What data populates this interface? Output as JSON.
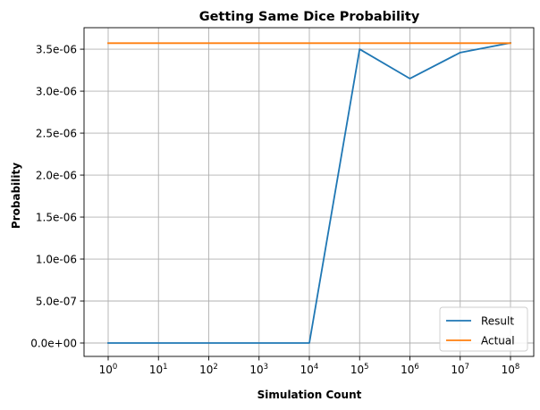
{
  "chart_data": {
    "type": "line",
    "title": "Getting Same Dice Probability",
    "xlabel": "Simulation Count",
    "ylabel": "Probability",
    "x_scale": "log",
    "x": [
      1,
      10,
      100,
      1000,
      10000,
      100000,
      1000000,
      10000000,
      100000000
    ],
    "xlim": [
      1,
      100000000
    ],
    "ylim": [
      0,
      3.57e-06
    ],
    "x_ticks": [
      {
        "base": "10",
        "exp": "0"
      },
      {
        "base": "10",
        "exp": "1"
      },
      {
        "base": "10",
        "exp": "2"
      },
      {
        "base": "10",
        "exp": "3"
      },
      {
        "base": "10",
        "exp": "4"
      },
      {
        "base": "10",
        "exp": "5"
      },
      {
        "base": "10",
        "exp": "6"
      },
      {
        "base": "10",
        "exp": "7"
      },
      {
        "base": "10",
        "exp": "8"
      }
    ],
    "y_ticks": [
      {
        "value": 0,
        "label": "0.0e+00"
      },
      {
        "value": 5e-07,
        "label": "5.0e-07"
      },
      {
        "value": 1e-06,
        "label": "1.0e-06"
      },
      {
        "value": 1.5e-06,
        "label": "1.5e-06"
      },
      {
        "value": 2e-06,
        "label": "2.0e-06"
      },
      {
        "value": 2.5e-06,
        "label": "2.5e-06"
      },
      {
        "value": 3e-06,
        "label": "3.0e-06"
      },
      {
        "value": 3.5e-06,
        "label": "3.5e-06"
      }
    ],
    "grid": true,
    "legend_position": "bottom-right",
    "series": [
      {
        "name": "Result",
        "color": "#1f77b4",
        "values": [
          0,
          0,
          0,
          0,
          0,
          3.5e-06,
          3.15e-06,
          3.46e-06,
          3.575e-06
        ]
      },
      {
        "name": "Actual",
        "color": "#ff7f0e",
        "values": [
          3.572e-06,
          3.572e-06,
          3.572e-06,
          3.572e-06,
          3.572e-06,
          3.572e-06,
          3.572e-06,
          3.572e-06,
          3.572e-06
        ]
      }
    ]
  }
}
